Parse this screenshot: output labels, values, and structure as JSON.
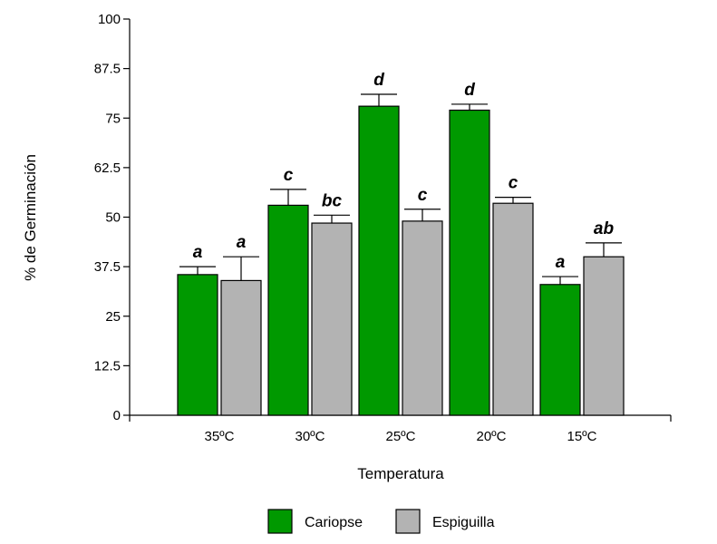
{
  "chart_data": {
    "type": "bar",
    "xlabel": "Temperatura",
    "ylabel": "% de Germinación",
    "ylim": [
      0,
      100
    ],
    "yticks": [
      "0",
      "12.5",
      "25",
      "37.5",
      "50",
      "62.5",
      "75",
      "87.5",
      "100"
    ],
    "categories": [
      "35ºC",
      "30ºC",
      "25ºC",
      "20ºC",
      "15ºC"
    ],
    "series": [
      {
        "name": "Cariopse",
        "color": "#009900",
        "values": [
          35.5,
          53,
          78,
          77,
          33
        ],
        "errors": [
          2,
          4,
          3,
          1.5,
          2
        ],
        "labels": [
          "a",
          "c",
          "d",
          "d",
          "a"
        ]
      },
      {
        "name": "Espiguilla",
        "color": "#b3b3b3",
        "values": [
          34,
          48.5,
          49,
          53.5,
          40
        ],
        "errors": [
          6,
          2,
          3,
          1.5,
          3.5
        ],
        "labels": [
          "a",
          "bc",
          "c",
          "c",
          "ab"
        ]
      }
    ],
    "legend_position": "bottom",
    "grid": false
  }
}
